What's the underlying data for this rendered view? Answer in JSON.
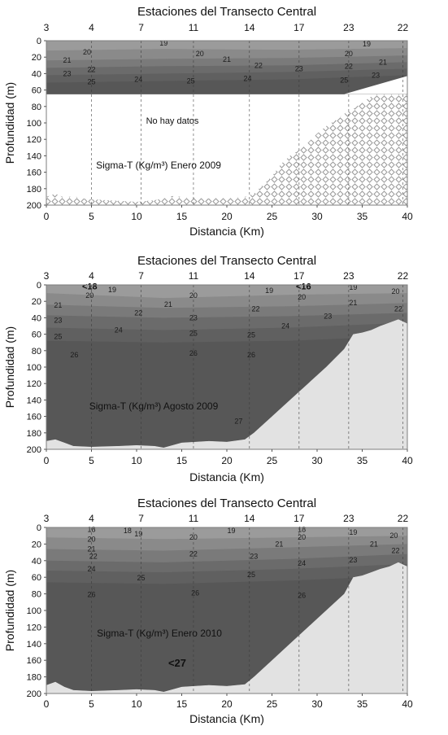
{
  "chart_data": [
    {
      "type": "heatmap",
      "title": "Estaciones del Transecto Central",
      "stations": [
        "3",
        "4",
        "7",
        "11",
        "14",
        "17",
        "23",
        "22"
      ],
      "station_km": [
        0,
        5,
        10.5,
        16.3,
        22.5,
        28,
        33.5,
        39.5
      ],
      "xlabel": "Distancia (Km)",
      "ylabel": "Profundidad (m)",
      "xlim": [
        0,
        40
      ],
      "ylim": [
        200,
        0
      ],
      "xticks": [
        "0",
        "5",
        "10",
        "15",
        "20",
        "25",
        "30",
        "35",
        "40"
      ],
      "yticks": [
        "0",
        "20",
        "40",
        "60",
        "80",
        "100",
        "120",
        "140",
        "160",
        "180",
        "200"
      ],
      "annotation": "Sigma-T (Kg/m³) Enero 2009",
      "note": "No hay datos",
      "data_max_depth": 65,
      "bottom_profile": [
        [
          0,
          190
        ],
        [
          1,
          186
        ],
        [
          2,
          191
        ],
        [
          3,
          189
        ],
        [
          4,
          192
        ],
        [
          5,
          193
        ],
        [
          10,
          196
        ],
        [
          12,
          194
        ],
        [
          14,
          189
        ],
        [
          16,
          191
        ],
        [
          18,
          192
        ],
        [
          20,
          191
        ],
        [
          22,
          190
        ],
        [
          23,
          186
        ],
        [
          25,
          165
        ],
        [
          26,
          150
        ],
        [
          27,
          140
        ],
        [
          28,
          133
        ],
        [
          29,
          124
        ],
        [
          30,
          113
        ],
        [
          31,
          104
        ],
        [
          32,
          97
        ],
        [
          33,
          89
        ],
        [
          34,
          83
        ],
        [
          35,
          75
        ],
        [
          36,
          68
        ],
        [
          37,
          60
        ],
        [
          38,
          55
        ],
        [
          39,
          50
        ],
        [
          40,
          43
        ]
      ],
      "contour_depths": [
        [
          12,
          10,
          11,
          9
        ],
        [
          24,
          22,
          21,
          18
        ],
        [
          33,
          31,
          30,
          26
        ],
        [
          42,
          40,
          38,
          34
        ],
        [
          51,
          49,
          47,
          42
        ]
      ],
      "labels": [
        {
          "text": "19",
          "x": 13,
          "y": 2
        },
        {
          "text": "20",
          "x": 4.5,
          "y": 13
        },
        {
          "text": "20",
          "x": 17,
          "y": 15
        },
        {
          "text": "21",
          "x": 2.3,
          "y": 23
        },
        {
          "text": "21",
          "x": 20,
          "y": 22
        },
        {
          "text": "22",
          "x": 5,
          "y": 34
        },
        {
          "text": "22",
          "x": 23.5,
          "y": 29
        },
        {
          "text": "23",
          "x": 2.3,
          "y": 39
        },
        {
          "text": "23",
          "x": 28,
          "y": 33
        },
        {
          "text": "24",
          "x": 10.2,
          "y": 46
        },
        {
          "text": "24",
          "x": 22.3,
          "y": 45
        },
        {
          "text": "25",
          "x": 5,
          "y": 49
        },
        {
          "text": "25",
          "x": 16,
          "y": 48
        },
        {
          "text": "19",
          "x": 35.5,
          "y": 3
        },
        {
          "text": "20",
          "x": 33.5,
          "y": 15
        },
        {
          "text": "21",
          "x": 37.3,
          "y": 25
        },
        {
          "text": "22",
          "x": 33.5,
          "y": 30
        },
        {
          "text": "23",
          "x": 36.5,
          "y": 41
        },
        {
          "text": "25",
          "x": 33,
          "y": 47
        }
      ]
    },
    {
      "type": "heatmap",
      "title": "Estaciones del Transecto Central",
      "stations": [
        "3",
        "4",
        "7",
        "11",
        "14",
        "17",
        "23",
        "22"
      ],
      "station_km": [
        0,
        5,
        10.5,
        16.3,
        22.5,
        28,
        33.5,
        39.5
      ],
      "xlabel": "Distancia (Km)",
      "ylabel": "Profundidad (m)",
      "xlim": [
        0,
        40
      ],
      "ylim": [
        200,
        0
      ],
      "xticks": [
        "0",
        "5",
        "10",
        "15",
        "20",
        "25",
        "30",
        "35",
        "40"
      ],
      "yticks": [
        "0",
        "20",
        "40",
        "60",
        "80",
        "100",
        "120",
        "140",
        "160",
        "180",
        "200"
      ],
      "annotation": "Sigma-T (Kg/m³) Agosto 2009",
      "bottom_profile": [
        [
          0,
          190
        ],
        [
          1,
          188
        ],
        [
          2,
          192
        ],
        [
          3,
          196
        ],
        [
          5,
          197
        ],
        [
          8,
          196
        ],
        [
          10,
          195
        ],
        [
          12,
          196
        ],
        [
          13,
          198
        ],
        [
          15,
          192
        ],
        [
          18,
          190
        ],
        [
          20,
          191
        ],
        [
          22,
          188
        ],
        [
          23,
          180
        ],
        [
          25,
          160
        ],
        [
          27,
          140
        ],
        [
          29,
          120
        ],
        [
          31,
          100
        ],
        [
          33,
          78
        ],
        [
          34,
          60
        ],
        [
          35,
          58
        ],
        [
          36,
          55
        ],
        [
          37,
          50
        ],
        [
          38,
          46
        ],
        [
          39,
          42
        ],
        [
          40,
          47
        ]
      ],
      "contour_depths": [
        [
          10,
          16,
          12,
          10
        ],
        [
          24,
          28,
          26,
          22
        ],
        [
          37,
          40,
          38,
          34
        ],
        [
          52,
          55,
          52,
          46
        ],
        [
          68,
          70,
          68,
          62
        ]
      ],
      "labels": [
        {
          "text": "<18",
          "x": 4.8,
          "y": 1.5
        },
        {
          "text": "19",
          "x": 7.3,
          "y": 5
        },
        {
          "text": "20",
          "x": 4.8,
          "y": 12
        },
        {
          "text": "20",
          "x": 16.3,
          "y": 12
        },
        {
          "text": "21",
          "x": 1.3,
          "y": 24
        },
        {
          "text": "21",
          "x": 13.5,
          "y": 23
        },
        {
          "text": "22",
          "x": 10.2,
          "y": 33
        },
        {
          "text": "22",
          "x": 23.2,
          "y": 28
        },
        {
          "text": "23",
          "x": 1.3,
          "y": 42
        },
        {
          "text": "23",
          "x": 16.3,
          "y": 39
        },
        {
          "text": "24",
          "x": 8,
          "y": 54
        },
        {
          "text": "24",
          "x": 26.5,
          "y": 49
        },
        {
          "text": "25",
          "x": 1.3,
          "y": 62
        },
        {
          "text": "25",
          "x": 16.3,
          "y": 58
        },
        {
          "text": "25",
          "x": 22.7,
          "y": 60
        },
        {
          "text": "26",
          "x": 3.1,
          "y": 84
        },
        {
          "text": "26",
          "x": 16.3,
          "y": 82
        },
        {
          "text": "26",
          "x": 22.7,
          "y": 84
        },
        {
          "text": "27",
          "x": 21.3,
          "y": 165
        },
        {
          "text": "19",
          "x": 24.7,
          "y": 6
        },
        {
          "text": "<16",
          "x": 28.5,
          "y": 1.5
        },
        {
          "text": "20",
          "x": 28.3,
          "y": 14
        },
        {
          "text": "19",
          "x": 34,
          "y": 2
        },
        {
          "text": "20",
          "x": 38.7,
          "y": 7
        },
        {
          "text": "21",
          "x": 34,
          "y": 21
        },
        {
          "text": "22",
          "x": 39,
          "y": 28
        },
        {
          "text": "23",
          "x": 31.2,
          "y": 37
        }
      ]
    },
    {
      "type": "heatmap",
      "title": "Estaciones del Transecto Central",
      "stations": [
        "3",
        "4",
        "7",
        "11",
        "14",
        "17",
        "23",
        "22"
      ],
      "station_km": [
        0,
        5,
        10.5,
        16.3,
        22.5,
        28,
        33.5,
        39.5
      ],
      "xlabel": "Distancia (Km)",
      "ylabel": "Profundidad (m)",
      "xlim": [
        0,
        40
      ],
      "ylim": [
        200,
        0
      ],
      "xticks": [
        "0",
        "5",
        "10",
        "15",
        "20",
        "25",
        "30",
        "35",
        "40"
      ],
      "yticks": [
        "0",
        "20",
        "40",
        "60",
        "80",
        "100",
        "120",
        "140",
        "160",
        "180",
        "200"
      ],
      "annotation": "Sigma-T (Kg/m³) Enero 2010",
      "note": "<27",
      "bottom_profile": [
        [
          0,
          190
        ],
        [
          1,
          186
        ],
        [
          2,
          192
        ],
        [
          3,
          196
        ],
        [
          5,
          197
        ],
        [
          8,
          196
        ],
        [
          10,
          195
        ],
        [
          12,
          196
        ],
        [
          13,
          198
        ],
        [
          15,
          192
        ],
        [
          18,
          190
        ],
        [
          20,
          191
        ],
        [
          22,
          189
        ],
        [
          23,
          180
        ],
        [
          25,
          160
        ],
        [
          27,
          140
        ],
        [
          29,
          120
        ],
        [
          31,
          100
        ],
        [
          33,
          80
        ],
        [
          34,
          60
        ],
        [
          35,
          58
        ],
        [
          36,
          54
        ],
        [
          37,
          50
        ],
        [
          38,
          47
        ],
        [
          39,
          42
        ],
        [
          40,
          47
        ]
      ],
      "contour_depths": [
        [
          12,
          14,
          12,
          10
        ],
        [
          26,
          28,
          24,
          20
        ],
        [
          40,
          42,
          38,
          32
        ],
        [
          52,
          54,
          50,
          44
        ],
        [
          66,
          68,
          64,
          58
        ]
      ],
      "labels": [
        {
          "text": "18",
          "x": 5,
          "y": 1.5
        },
        {
          "text": "18",
          "x": 9,
          "y": 3
        },
        {
          "text": "19",
          "x": 10.2,
          "y": 7
        },
        {
          "text": "20",
          "x": 5,
          "y": 13
        },
        {
          "text": "20",
          "x": 16.3,
          "y": 11
        },
        {
          "text": "19",
          "x": 20.5,
          "y": 3
        },
        {
          "text": "21",
          "x": 5,
          "y": 25
        },
        {
          "text": "21",
          "x": 25.8,
          "y": 19
        },
        {
          "text": "22",
          "x": 5.2,
          "y": 34
        },
        {
          "text": "22",
          "x": 16.3,
          "y": 31
        },
        {
          "text": "23",
          "x": 23,
          "y": 34
        },
        {
          "text": "24",
          "x": 5,
          "y": 49
        },
        {
          "text": "24",
          "x": 28.3,
          "y": 42
        },
        {
          "text": "25",
          "x": 10.5,
          "y": 60
        },
        {
          "text": "25",
          "x": 22.7,
          "y": 56
        },
        {
          "text": "26",
          "x": 5,
          "y": 80
        },
        {
          "text": "26",
          "x": 16.5,
          "y": 78
        },
        {
          "text": "26",
          "x": 28.3,
          "y": 81
        },
        {
          "text": "18",
          "x": 28.3,
          "y": 1.5
        },
        {
          "text": "20",
          "x": 28.3,
          "y": 11
        },
        {
          "text": "19",
          "x": 34,
          "y": 5
        },
        {
          "text": "20",
          "x": 38.5,
          "y": 9
        },
        {
          "text": "21",
          "x": 36.3,
          "y": 19
        },
        {
          "text": "22",
          "x": 38.7,
          "y": 27
        },
        {
          "text": "23",
          "x": 34,
          "y": 38
        }
      ]
    }
  ]
}
